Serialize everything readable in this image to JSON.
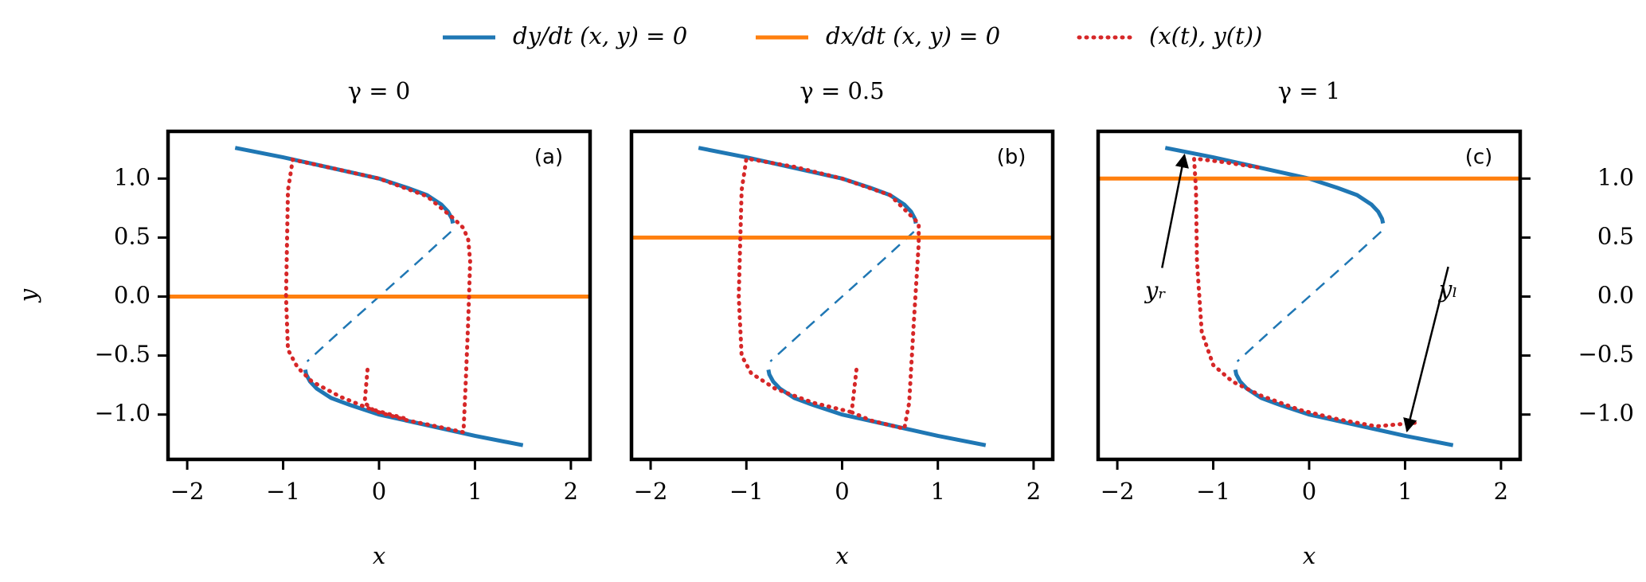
{
  "chart_data": [
    {
      "type": "line",
      "title": "γ = 0",
      "panel_label": "(a)",
      "xlabel": "x",
      "ylabel": "y",
      "yaxis_side": "left",
      "xlim": [
        -2.2,
        2.2
      ],
      "ylim": [
        -1.38,
        1.4
      ],
      "xticks": [
        {
          "value": -2,
          "label": "−2"
        },
        {
          "value": -1,
          "label": "−1"
        },
        0,
        1,
        2
      ],
      "yticks": [
        {
          "value": -1.0,
          "label": "−1.0"
        },
        {
          "value": -0.5,
          "label": "−0.5"
        },
        {
          "value": 0.0,
          "label": "0.0"
        },
        {
          "value": 0.5,
          "label": "0.5"
        },
        {
          "value": 1.0,
          "label": "1.0"
        }
      ],
      "series": [
        {
          "name": "dy/dt (x, y) = 0",
          "color": "#1f77b4",
          "style": "solid",
          "x": [
            -1.5,
            -1.0,
            -0.5,
            0,
            0.3,
            0.5,
            0.65,
            0.72,
            0.76,
            0.77
          ],
          "y": [
            1.26,
            1.18,
            1.09,
            1.0,
            0.92,
            0.86,
            0.78,
            0.72,
            0.66,
            0.62
          ]
        },
        {
          "color": "#1f77b4",
          "style": "dashed",
          "x": [
            0.75,
            0.4,
            0,
            -0.4,
            -0.75
          ],
          "y": [
            0.55,
            0.29,
            0,
            -0.29,
            -0.55
          ]
        },
        {
          "color": "#1f77b4",
          "style": "solid",
          "x": [
            -0.77,
            -0.76,
            -0.72,
            -0.65,
            -0.5,
            -0.3,
            0,
            0.5,
            1.0,
            1.5
          ],
          "y": [
            -0.62,
            -0.66,
            -0.72,
            -0.78,
            -0.86,
            -0.92,
            -1.0,
            -1.09,
            -1.18,
            -1.26
          ]
        },
        {
          "name": "dx/dt (x, y) = 0",
          "color": "#ff7f0e",
          "style": "solid",
          "x": [
            -2.2,
            2.2
          ],
          "y": [
            0,
            0
          ]
        },
        {
          "name": "(x(t), y(t))",
          "color": "#d62728",
          "style": "dotted",
          "x": [
            -0.12,
            -0.15,
            -0.05,
            0.3,
            0.6,
            0.88,
            0.9,
            0.93,
            0.95,
            0.93,
            0.88,
            0.78,
            0.5,
            0,
            -0.5,
            -0.9,
            -0.95,
            -0.97,
            -0.95,
            -0.85,
            -0.7,
            -0.4,
            -0.1,
            0.3
          ],
          "y": [
            -0.62,
            -0.9,
            -0.97,
            -1.05,
            -1.1,
            -1.15,
            -0.8,
            -0.2,
            0.3,
            0.48,
            0.58,
            0.66,
            0.85,
            1.0,
            1.09,
            1.16,
            0.9,
            0.0,
            -0.45,
            -0.6,
            -0.72,
            -0.85,
            -0.95,
            -1.04
          ]
        }
      ]
    },
    {
      "type": "line",
      "title": "γ = 0.5",
      "panel_label": "(b)",
      "xlabel": "x",
      "xlim": [
        -2.2,
        2.2
      ],
      "ylim": [
        -1.38,
        1.4
      ],
      "xticks": [
        {
          "value": -2,
          "label": "−2"
        },
        {
          "value": -1,
          "label": "−1"
        },
        0,
        1,
        2
      ],
      "series": [
        {
          "color": "#1f77b4",
          "style": "solid",
          "x": [
            -1.5,
            -1.0,
            -0.5,
            0,
            0.3,
            0.5,
            0.65,
            0.72,
            0.76,
            0.77
          ],
          "y": [
            1.26,
            1.18,
            1.09,
            1.0,
            0.92,
            0.86,
            0.78,
            0.72,
            0.66,
            0.62
          ]
        },
        {
          "color": "#1f77b4",
          "style": "dashed",
          "x": [
            0.75,
            0.4,
            0,
            -0.4,
            -0.75
          ],
          "y": [
            0.55,
            0.29,
            0,
            -0.29,
            -0.55
          ]
        },
        {
          "color": "#1f77b4",
          "style": "solid",
          "x": [
            -0.77,
            -0.76,
            -0.72,
            -0.65,
            -0.5,
            -0.3,
            0,
            0.5,
            1.0,
            1.5
          ],
          "y": [
            -0.62,
            -0.66,
            -0.72,
            -0.78,
            -0.86,
            -0.92,
            -1.0,
            -1.09,
            -1.18,
            -1.26
          ]
        },
        {
          "color": "#ff7f0e",
          "style": "solid",
          "x": [
            -2.2,
            2.2
          ],
          "y": [
            0.5,
            0.5
          ]
        },
        {
          "color": "#d62728",
          "style": "dotted",
          "x": [
            0.15,
            0.1,
            0.3,
            0.65,
            0.7,
            0.75,
            0.8,
            0.8,
            0.5,
            0,
            -0.5,
            -1.0,
            -1.05,
            -1.08,
            -1.05,
            -0.95,
            -0.7,
            -0.3,
            0.1
          ],
          "y": [
            -0.62,
            -0.98,
            -1.05,
            -1.12,
            -0.9,
            -0.2,
            0.45,
            0.62,
            0.86,
            1.0,
            1.1,
            1.17,
            0.9,
            0.0,
            -0.5,
            -0.65,
            -0.78,
            -0.9,
            -0.98
          ]
        }
      ]
    },
    {
      "type": "line",
      "title": "γ = 1",
      "panel_label": "(c)",
      "xlabel": "x",
      "yaxis_side": "right",
      "xlim": [
        -2.2,
        2.2
      ],
      "ylim": [
        -1.38,
        1.4
      ],
      "xticks": [
        {
          "value": -2,
          "label": "−2"
        },
        {
          "value": -1,
          "label": "−1"
        },
        0,
        1,
        2
      ],
      "yticks": [
        {
          "value": -1.0,
          "label": "−1.0"
        },
        {
          "value": -0.5,
          "label": "−0.5"
        },
        {
          "value": 0.0,
          "label": "0.0"
        },
        {
          "value": 0.5,
          "label": "0.5"
        },
        {
          "value": 1.0,
          "label": "1.0"
        }
      ],
      "series": [
        {
          "color": "#1f77b4",
          "style": "solid",
          "x": [
            -1.5,
            -1.0,
            -0.5,
            0,
            0.3,
            0.5,
            0.65,
            0.72,
            0.76,
            0.77
          ],
          "y": [
            1.26,
            1.18,
            1.09,
            1.0,
            0.92,
            0.86,
            0.78,
            0.72,
            0.66,
            0.62
          ]
        },
        {
          "color": "#1f77b4",
          "style": "dashed",
          "x": [
            0.75,
            0.4,
            0,
            -0.4,
            -0.75
          ],
          "y": [
            0.55,
            0.29,
            0,
            -0.29,
            -0.55
          ]
        },
        {
          "color": "#1f77b4",
          "style": "solid",
          "x": [
            -0.77,
            -0.76,
            -0.72,
            -0.65,
            -0.5,
            -0.3,
            0,
            0.5,
            1.0,
            1.5
          ],
          "y": [
            -0.62,
            -0.66,
            -0.72,
            -0.78,
            -0.86,
            -0.92,
            -1.0,
            -1.09,
            -1.18,
            -1.26
          ]
        },
        {
          "color": "#ff7f0e",
          "style": "solid",
          "x": [
            -2.2,
            2.2
          ],
          "y": [
            1,
            1
          ]
        },
        {
          "color": "#d62728",
          "style": "dotted",
          "x": [
            1.1,
            0.7,
            0.3,
            -0.1,
            -0.5,
            -0.8,
            -1.0,
            -1.12,
            -1.17,
            -1.18,
            -1.2,
            -0.9,
            -0.5
          ],
          "y": [
            -1.07,
            -1.1,
            -1.04,
            -0.96,
            -0.84,
            -0.72,
            -0.58,
            -0.3,
            0.3,
            0.9,
            1.17,
            1.14,
            1.09
          ]
        }
      ],
      "annotations": [
        {
          "text": "yᵣ"
        },
        {
          "text": "yₗ"
        }
      ]
    }
  ]
}
